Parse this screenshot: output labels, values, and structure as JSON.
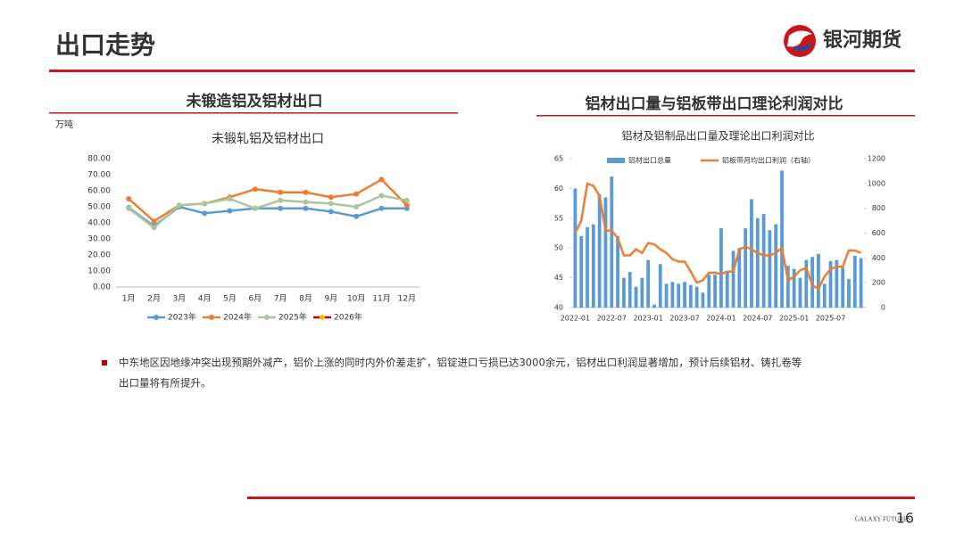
{
  "header": {
    "title": "出口走势",
    "logo": "银河期货"
  },
  "sections": [
    "未锻造铝及铝材出口",
    "铝材出口量与铝板带出口理论利润对比"
  ],
  "unit": "万吨",
  "bullet": [
    "中东地区因地缘冲突出现预期外减产，铝价上涨的同时内外价差走扩，铝锭进口亏损已达3000余元，铝材出口利润显著增加，预计后续铝材、铸扎卷等",
    "出口量将有所提升。"
  ],
  "footer": {
    "brand": "GALAXY FUTURES",
    "page": "16"
  },
  "chart_data": [
    {
      "type": "line",
      "title": "未锻轧铝及铝材出口",
      "categories": [
        "1月",
        "2月",
        "3月",
        "4月",
        "5月",
        "6月",
        "7月",
        "8月",
        "9月",
        "10月",
        "11月",
        "12月"
      ],
      "ylim": [
        0,
        80
      ],
      "yticks": [
        {
          "value": 0,
          "label": "0.00"
        },
        {
          "value": 10,
          "label": "10.00"
        },
        {
          "value": 20,
          "label": "20.00"
        },
        {
          "value": 30,
          "label": "30.00"
        },
        {
          "value": 40,
          "label": "40.00"
        },
        {
          "value": 50,
          "label": "50.00"
        },
        {
          "value": 60,
          "label": "60.00"
        },
        {
          "value": 70,
          "label": "70.00"
        },
        {
          "value": 80,
          "label": "80.00"
        }
      ],
      "series": [
        {
          "name": "2023年",
          "color": "#5b9bd5",
          "values": [
            49.5,
            38,
            50,
            46,
            47.5,
            49,
            49,
            49,
            47,
            44,
            49,
            49
          ]
        },
        {
          "name": "2024年",
          "color": "#ed7d31",
          "values": [
            55,
            41,
            51,
            52,
            56,
            61,
            59,
            59,
            56,
            58,
            67,
            51
          ]
        },
        {
          "name": "2025年",
          "color": "#a9c79a",
          "values": [
            49,
            37,
            51,
            52,
            55,
            49,
            54,
            53,
            52,
            50,
            57,
            54
          ]
        },
        {
          "name": "2026年",
          "color": "#c00000",
          "values": [
            null,
            null,
            null,
            null,
            null,
            null,
            null,
            null,
            null,
            null,
            null,
            null
          ]
        }
      ]
    },
    {
      "type": "combo",
      "title": "铝材及铝制品出口量及理论出口利润对比",
      "categories": [
        "2022-01",
        null,
        null,
        null,
        null,
        null,
        "2022-07",
        null,
        null,
        null,
        null,
        null,
        "2023-01",
        null,
        null,
        null,
        null,
        null,
        "2023-07",
        null,
        null,
        null,
        null,
        null,
        "2024-01",
        null,
        null,
        null,
        null,
        null,
        "2024-07",
        null,
        null,
        null,
        null,
        null,
        "2025-01",
        null,
        null,
        null,
        null,
        null,
        "2025-07",
        null,
        null,
        null,
        null,
        null
      ],
      "ylim": [
        40,
        65
      ],
      "yticks": [
        40,
        45,
        50,
        55,
        60,
        65
      ],
      "y2lim": [
        0,
        1200
      ],
      "y2ticks": [
        0,
        200,
        400,
        600,
        800,
        1000,
        1200
      ],
      "series": [
        {
          "name": "铝材出口总量",
          "type": "bar",
          "color": "#5b9bd5",
          "values": [
            60,
            52,
            53.5,
            54,
            59,
            58.5,
            62,
            52,
            45,
            46,
            43.5,
            45,
            48,
            40.5,
            47.3,
            44,
            44.3,
            44,
            44.3,
            43.8,
            43.5,
            42.5,
            45.5,
            45.5,
            53.3,
            46,
            49.5,
            50,
            53.3,
            58.2,
            55,
            55.7,
            53,
            54,
            63,
            47,
            46.5,
            45,
            48,
            48.5,
            49,
            44,
            47.8,
            48,
            46.7,
            44.8,
            48.7,
            48.3
          ]
        },
        {
          "name": "铝板带月均出口利润（右轴）",
          "type": "line",
          "axis": "y2",
          "color": "#ed7d31",
          "values": [
            600,
            700,
            1000,
            980,
            900,
            620,
            620,
            560,
            420,
            420,
            470,
            440,
            520,
            510,
            470,
            440,
            390,
            370,
            370,
            290,
            200,
            220,
            280,
            280,
            270,
            290,
            290,
            470,
            490,
            470,
            440,
            420,
            420,
            440,
            480,
            220,
            250,
            300,
            320,
            180,
            150,
            250,
            310,
            330,
            330,
            460,
            460,
            440
          ]
        }
      ]
    }
  ]
}
